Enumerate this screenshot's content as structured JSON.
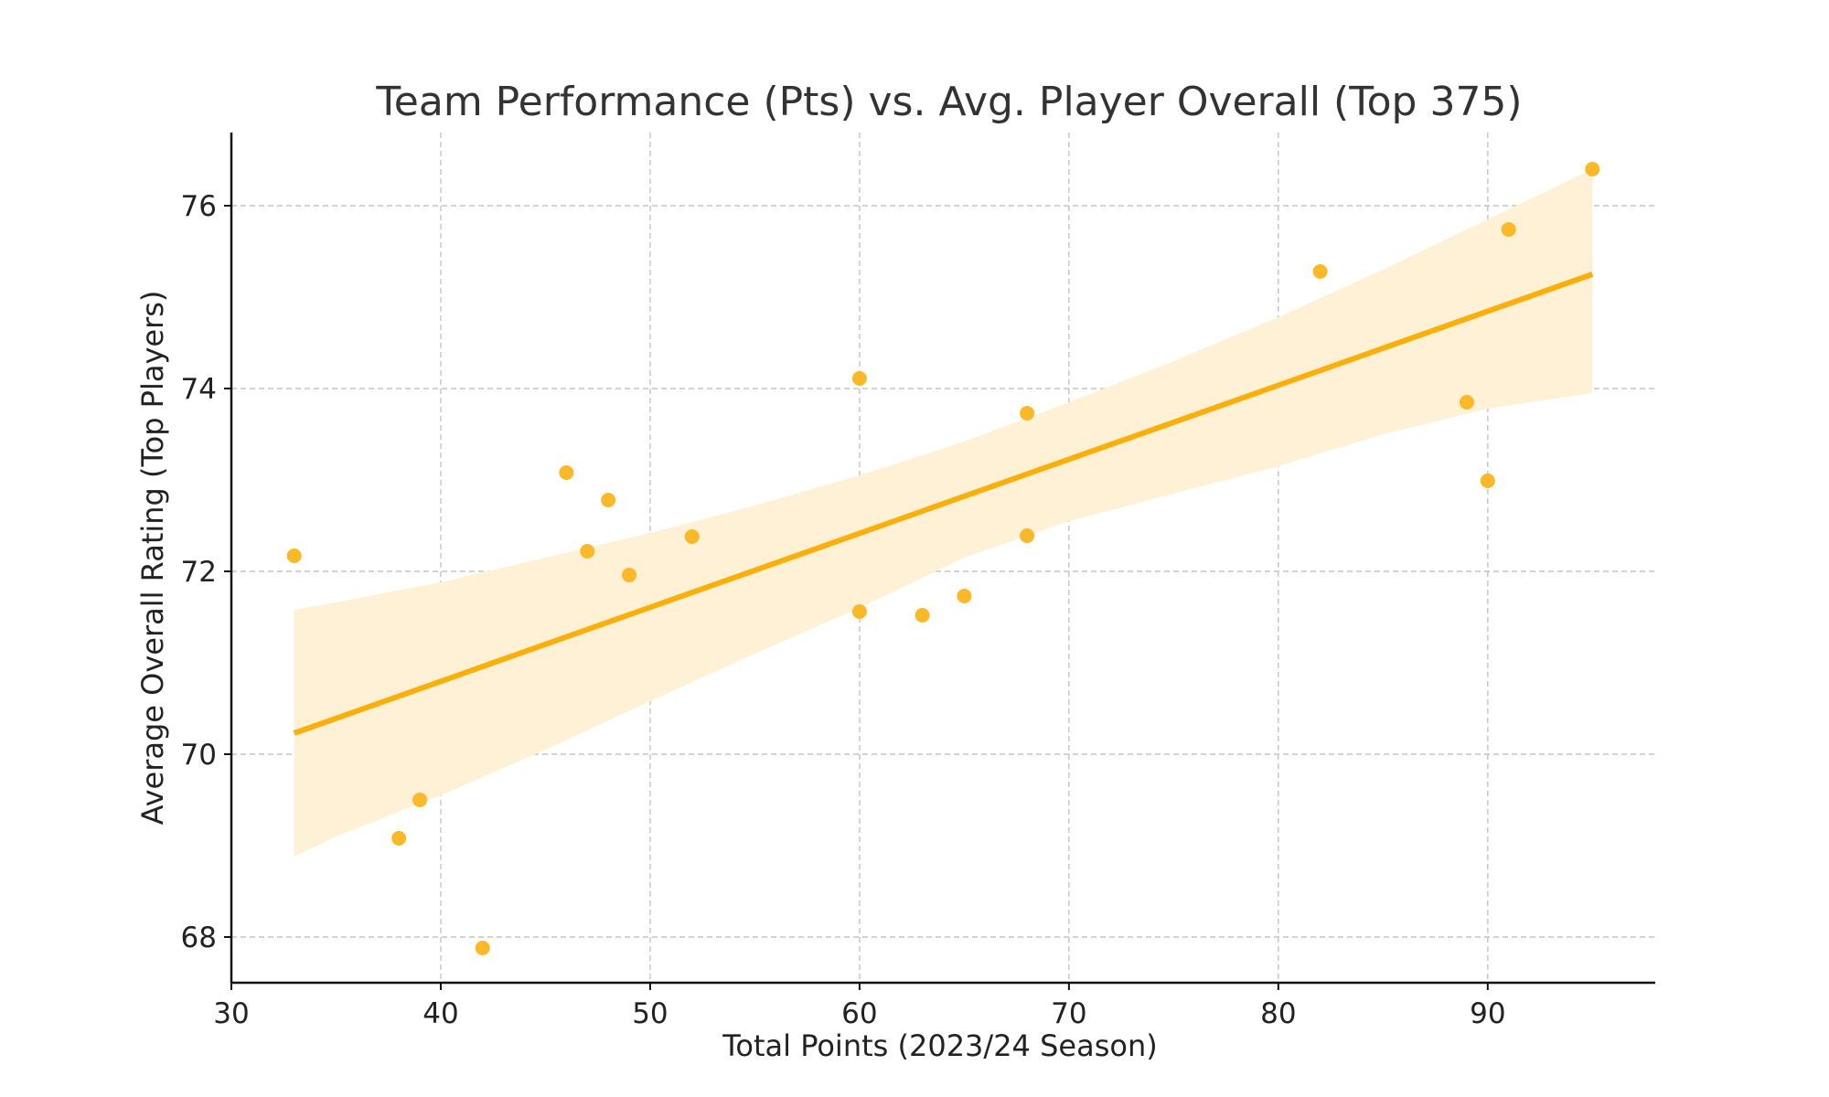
{
  "chart_data": {
    "type": "scatter",
    "title": "Team Performance (Pts) vs. Avg. Player Overall (Top 375)",
    "xlabel": "Total Points (2023/24 Season)",
    "ylabel": "Average Overall Rating (Top Players)",
    "xlim": [
      30,
      98
    ],
    "ylim": [
      67.5,
      76.8
    ],
    "xticks": [
      30,
      40,
      50,
      60,
      70,
      80,
      90
    ],
    "yticks": [
      68,
      70,
      72,
      74,
      76
    ],
    "grid": true,
    "colors": {
      "points": "#FBB829",
      "line": "#FBAF0B",
      "band": "#FEF1D6"
    },
    "points": [
      {
        "x": 33,
        "y": 72.17
      },
      {
        "x": 38,
        "y": 69.08
      },
      {
        "x": 39,
        "y": 69.5
      },
      {
        "x": 42,
        "y": 67.88
      },
      {
        "x": 46,
        "y": 73.08
      },
      {
        "x": 47,
        "y": 72.22
      },
      {
        "x": 48,
        "y": 72.78
      },
      {
        "x": 49,
        "y": 71.96
      },
      {
        "x": 52,
        "y": 72.38
      },
      {
        "x": 60,
        "y": 74.11
      },
      {
        "x": 60,
        "y": 71.56
      },
      {
        "x": 63,
        "y": 71.52
      },
      {
        "x": 65,
        "y": 71.73
      },
      {
        "x": 68,
        "y": 73.73
      },
      {
        "x": 68,
        "y": 72.39
      },
      {
        "x": 82,
        "y": 75.28
      },
      {
        "x": 89,
        "y": 73.85
      },
      {
        "x": 90,
        "y": 72.99
      },
      {
        "x": 91,
        "y": 75.74
      },
      {
        "x": 95,
        "y": 76.4
      }
    ],
    "regression": {
      "line": [
        {
          "x": 33,
          "y": 70.23
        },
        {
          "x": 95,
          "y": 75.25
        }
      ],
      "ci_upper": [
        {
          "x": 33,
          "y": 71.58
        },
        {
          "x": 35,
          "y": 71.66
        },
        {
          "x": 40,
          "y": 71.88
        },
        {
          "x": 45,
          "y": 72.15
        },
        {
          "x": 50,
          "y": 72.42
        },
        {
          "x": 55,
          "y": 72.72
        },
        {
          "x": 60,
          "y": 73.05
        },
        {
          "x": 65,
          "y": 73.42
        },
        {
          "x": 70,
          "y": 73.85
        },
        {
          "x": 75,
          "y": 74.3
        },
        {
          "x": 80,
          "y": 74.78
        },
        {
          "x": 85,
          "y": 75.3
        },
        {
          "x": 90,
          "y": 75.85
        },
        {
          "x": 95,
          "y": 76.4
        }
      ],
      "ci_lower": [
        {
          "x": 33,
          "y": 68.88
        },
        {
          "x": 35,
          "y": 69.1
        },
        {
          "x": 40,
          "y": 69.55
        },
        {
          "x": 45,
          "y": 70.05
        },
        {
          "x": 50,
          "y": 70.58
        },
        {
          "x": 55,
          "y": 71.1
        },
        {
          "x": 60,
          "y": 71.6
        },
        {
          "x": 65,
          "y": 72.15
        },
        {
          "x": 70,
          "y": 72.55
        },
        {
          "x": 75,
          "y": 72.85
        },
        {
          "x": 80,
          "y": 73.15
        },
        {
          "x": 85,
          "y": 73.5
        },
        {
          "x": 90,
          "y": 73.78
        },
        {
          "x": 95,
          "y": 73.95
        }
      ]
    }
  }
}
